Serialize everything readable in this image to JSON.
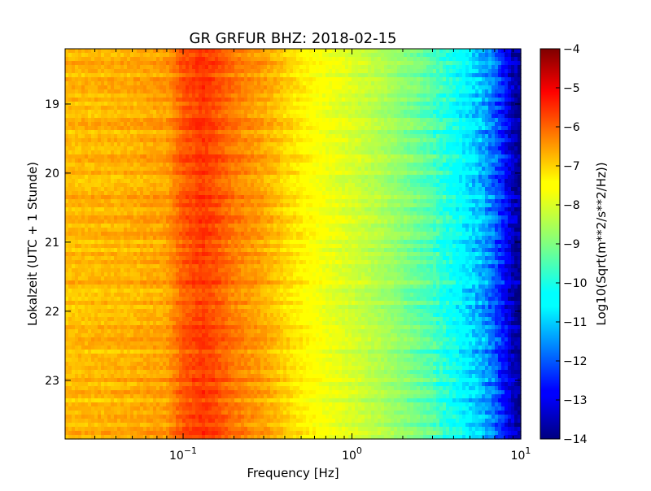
{
  "chart_data": {
    "type": "heatmap",
    "title": "GR GRFUR BHZ: 2018-02-15",
    "xlabel": "Frequency [Hz]",
    "ylabel": "Lokalzeit (UTC + 1 Stunde)",
    "x_scale": "log",
    "xlim": [
      0.02,
      10
    ],
    "x_ticks": [
      {
        "value": 0.1,
        "base": "10",
        "exp": "−1"
      },
      {
        "value": 1,
        "base": "10",
        "exp": "0"
      },
      {
        "value": 10,
        "base": "10",
        "exp": "1"
      }
    ],
    "ylim": [
      18.2,
      23.85
    ],
    "y_inverted": true,
    "y_ticks": [
      19,
      20,
      21,
      22,
      23
    ],
    "y_tick_labels": [
      "19",
      "20",
      "21",
      "22",
      "23"
    ],
    "grid": false,
    "colormap": "jet",
    "colorbar": {
      "label": "Log10(Sqrt(m**2/s**2/Hz))",
      "min": -14,
      "max": -4,
      "ticks": [
        -4,
        -5,
        -6,
        -7,
        -8,
        -9,
        -10,
        -11,
        -12,
        -13,
        -14
      ],
      "tick_labels": [
        "−4",
        "−5",
        "−6",
        "−7",
        "−8",
        "−9",
        "−10",
        "−11",
        "−12",
        "−13",
        "−14"
      ]
    },
    "spectrum_profile": {
      "frequency_hz": [
        0.02,
        0.05,
        0.08,
        0.1,
        0.13,
        0.15,
        0.2,
        0.3,
        0.5,
        0.7,
        1,
        1.5,
        2,
        3,
        4,
        5,
        6,
        7,
        8,
        9,
        10
      ],
      "value": [
        -6.8,
        -6.7,
        -6.55,
        -5.9,
        -5.6,
        -5.75,
        -6.2,
        -6.6,
        -7.3,
        -7.75,
        -8.05,
        -8.5,
        -8.9,
        -9.5,
        -10.2,
        -10.8,
        -11.3,
        -11.9,
        -12.7,
        -13.5,
        -13.9
      ]
    }
  }
}
